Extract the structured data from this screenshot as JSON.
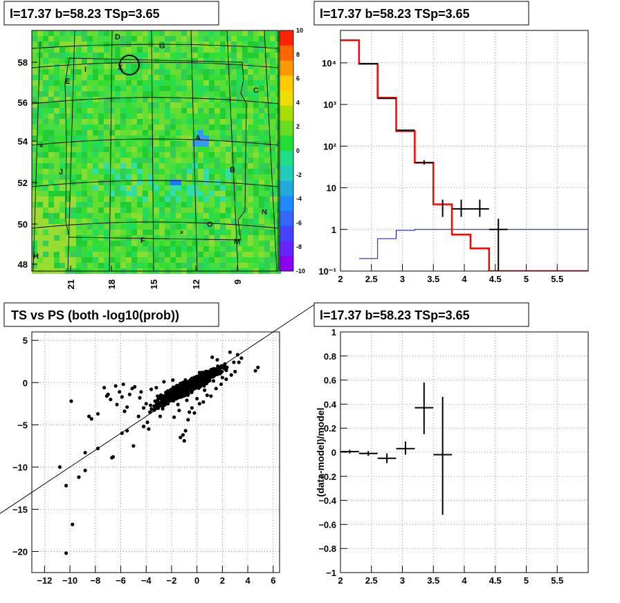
{
  "panels": {
    "map_title": "l=17.37 b=58.23 TSp=3.65",
    "hist_title": "l=17.37 b=58.23 TSp=3.65",
    "scatter_title": "TS vs PS (both -log10(prob))",
    "resid_title": "l=17.37 b=58.23 TSp=3.65"
  },
  "chart_data": [
    {
      "type": "heatmap",
      "title": "l=17.37 b=58.23 TSp=3.65",
      "y_ticks": [
        "48",
        "50",
        "52",
        "54",
        "56",
        "58"
      ],
      "x_ticks": [
        "21",
        "18",
        "15",
        "12",
        "9"
      ],
      "colorbar": {
        "ticks": [
          "10",
          "8",
          "6",
          "4",
          "2",
          "0",
          "-2",
          "-4",
          "-6",
          "-8",
          "-10"
        ],
        "range": [
          -10,
          10
        ]
      },
      "region_labels": [
        "D",
        "G",
        "I",
        "X",
        "E",
        "C",
        "A",
        "J",
        "B",
        "N",
        "O",
        "F",
        "M",
        "H"
      ]
    },
    {
      "type": "line",
      "title": "l=17.37 b=58.23 TSp=3.65",
      "x_ticks": [
        "2",
        "2.5",
        "3",
        "3.5",
        "4",
        "4.5",
        "5",
        "5.5"
      ],
      "y_ticks": [
        "10⁻¹",
        "1",
        "10",
        "10²",
        "10³",
        "10⁴"
      ],
      "yscale": "log",
      "xlim": [
        2,
        6
      ],
      "ylim": [
        0.1,
        60000
      ],
      "series": [
        {
          "color": "#ff0000",
          "edges": [
            2.0,
            2.3,
            2.6,
            2.9,
            3.2,
            3.5,
            3.8,
            4.1,
            4.4,
            6.0
          ],
          "values": [
            35000,
            9500,
            1450,
            230,
            40,
            4.0,
            0.75,
            0.35,
            0.1
          ]
        },
        {
          "color": "#0000ff",
          "edges": [
            2.3,
            2.6,
            2.9,
            3.2,
            3.5,
            6.0
          ],
          "values": [
            0.2,
            0.6,
            0.95,
            1.0,
            1.0
          ]
        }
      ],
      "data_points": [
        {
          "x": 2.45,
          "xerr": 0.15,
          "y": 9500,
          "ylo": 9500,
          "yhi": 9500
        },
        {
          "x": 2.75,
          "xerr": 0.15,
          "y": 1400,
          "ylo": 1400,
          "yhi": 1400
        },
        {
          "x": 3.05,
          "xerr": 0.15,
          "y": 240,
          "ylo": 240,
          "yhi": 240
        },
        {
          "x": 3.35,
          "xerr": 0.15,
          "y": 40,
          "ylo": 36,
          "yhi": 46
        },
        {
          "x": 3.65,
          "xerr": 0.0,
          "y": 3.2,
          "ylo": 2.0,
          "yhi": 5.2
        },
        {
          "x": 3.95,
          "xerr": 0.15,
          "y": 3.1,
          "ylo": 2.0,
          "yhi": 5.2
        },
        {
          "x": 4.25,
          "xerr": 0.15,
          "y": 3.1,
          "ylo": 2.0,
          "yhi": 5.2
        },
        {
          "x": 4.55,
          "xerr": 0.15,
          "y": 1.0,
          "ylo": 0.1,
          "yhi": 1.8
        }
      ]
    },
    {
      "type": "scatter",
      "title": "TS vs PS (both -log10(prob))",
      "x_ticks": [
        "−12",
        "−10",
        "−8",
        "−6",
        "−4",
        "−2",
        "0",
        "2",
        "4",
        "6"
      ],
      "y_ticks": [
        "5",
        "0",
        "−5",
        "−10",
        "−15",
        "−20"
      ],
      "xlim": [
        -13,
        6.5
      ],
      "ylim": [
        -22.5,
        6
      ],
      "reference_line": {
        "slope": 1,
        "intercept": 0
      },
      "points": [
        [
          -10.3,
          -20.2
        ],
        [
          -9.8,
          -16.8
        ],
        [
          -10.8,
          -10.0
        ],
        [
          -10.3,
          -12.2
        ],
        [
          -9.3,
          -11.2
        ],
        [
          -8.8,
          -10.4
        ],
        [
          -7.8,
          -7.8
        ],
        [
          -6.7,
          -8.9
        ],
        [
          -6.6,
          -8.8
        ],
        [
          -5.9,
          -6.0
        ],
        [
          -5.0,
          -7.5
        ],
        [
          -5.5,
          -5.7
        ],
        [
          -9.9,
          -2.2
        ],
        [
          -8.8,
          -8.3
        ],
        [
          -4.6,
          -4.0
        ],
        [
          -3.8,
          -5.5
        ],
        [
          -3.9,
          -4.7
        ],
        [
          -4.2,
          -5.2
        ],
        [
          -8.3,
          -4.3
        ],
        [
          -8.5,
          -4.0
        ],
        [
          -7.8,
          -3.7
        ],
        [
          -7.0,
          -1.4
        ],
        [
          -6.8,
          -2.0
        ],
        [
          -6.4,
          -0.4
        ],
        [
          -5.9,
          -1.7
        ],
        [
          -5.5,
          -2.9
        ],
        [
          -5.1,
          -0.7
        ],
        [
          -4.5,
          -1.8
        ],
        [
          -4.2,
          -3.0
        ],
        [
          -3.7,
          -3.5
        ],
        [
          -3.3,
          -2.2
        ],
        [
          -2.9,
          -4.0
        ],
        [
          -2.5,
          -2.6
        ],
        [
          -2.3,
          -1.0
        ],
        [
          -1.8,
          -4.1
        ],
        [
          -1.5,
          -2.6
        ],
        [
          -1.1,
          -6.2
        ],
        [
          -1.0,
          -6.9
        ],
        [
          -1.3,
          -6.5
        ],
        [
          -0.9,
          -5.7
        ],
        [
          -0.7,
          -4.4
        ],
        [
          -0.6,
          -3.5
        ],
        [
          -0.4,
          -3.0
        ],
        [
          -0.2,
          -3.6
        ],
        [
          0.2,
          -2.5
        ],
        [
          0.5,
          -2.3
        ],
        [
          0.8,
          -1.5
        ],
        [
          1.1,
          -1.6
        ],
        [
          1.5,
          -0.7
        ],
        [
          1.9,
          -0.2
        ],
        [
          2.3,
          0.4
        ],
        [
          2.7,
          0.9
        ],
        [
          3.0,
          1.3
        ],
        [
          3.3,
          2.4
        ],
        [
          3.2,
          3.3
        ],
        [
          3.5,
          2.9
        ],
        [
          2.6,
          3.6
        ],
        [
          1.2,
          3.0
        ],
        [
          1.6,
          2.7
        ],
        [
          4.6,
          1.4
        ],
        [
          4.8,
          1.8
        ],
        [
          -4.4,
          -1.1
        ],
        [
          -3.2,
          -0.6
        ],
        [
          -2.1,
          -0.9
        ],
        [
          -1.6,
          -1.2
        ],
        [
          -0.5,
          -0.4
        ],
        [
          0.3,
          0.7
        ],
        [
          0.9,
          1.3
        ],
        [
          1.8,
          1.8
        ],
        [
          2.2,
          2.2
        ],
        [
          2.9,
          2.4
        ],
        [
          -2.6,
          0.1
        ],
        [
          -1.9,
          0.3
        ],
        [
          -3.6,
          -0.8
        ],
        [
          -4.9,
          -0.5
        ],
        [
          -6.1,
          -1.1
        ],
        [
          -5.3,
          -1.4
        ],
        [
          -3.1,
          -1.6
        ],
        [
          -2.7,
          -3.1
        ],
        [
          -1.4,
          -3.3
        ],
        [
          -0.8,
          -2.1
        ],
        [
          0.0,
          -1.9
        ],
        [
          0.6,
          -0.9
        ],
        [
          1.3,
          0.2
        ],
        [
          2.0,
          0.6
        ],
        [
          -4.0,
          -2.5
        ],
        [
          -5.7,
          -3.4
        ],
        [
          -6.3,
          -2.6
        ],
        [
          -7.3,
          -0.6
        ],
        [
          -7.1,
          -1.6
        ],
        [
          -5.8,
          -0.2
        ]
      ]
    },
    {
      "type": "line",
      "title": "l=17.37 b=58.23 TSp=3.65",
      "ylabel": "(data-model)/model",
      "x_ticks": [
        "2",
        "2.5",
        "3",
        "3.5",
        "4",
        "4.5",
        "5",
        "5.5"
      ],
      "y_ticks": [
        "1",
        "0.8",
        "0.6",
        "0.4",
        "0.2",
        "0",
        "−0.2",
        "−0.4",
        "−0.6",
        "−0.8",
        "−1"
      ],
      "xlim": [
        2,
        6
      ],
      "ylim": [
        -1,
        1
      ],
      "data_points": [
        {
          "x": 2.15,
          "xerr": 0.15,
          "y": 0.005,
          "ylo": -0.01,
          "yhi": 0.02
        },
        {
          "x": 2.45,
          "xerr": 0.15,
          "y": -0.01,
          "ylo": -0.03,
          "yhi": 0.01
        },
        {
          "x": 2.75,
          "xerr": 0.15,
          "y": -0.05,
          "ylo": -0.09,
          "yhi": -0.01
        },
        {
          "x": 3.05,
          "xerr": 0.15,
          "y": 0.03,
          "ylo": -0.02,
          "yhi": 0.09
        },
        {
          "x": 3.35,
          "xerr": 0.15,
          "y": 0.37,
          "ylo": 0.15,
          "yhi": 0.58
        },
        {
          "x": 3.65,
          "xerr": 0.15,
          "y": -0.02,
          "ylo": -0.52,
          "yhi": 0.46
        }
      ]
    }
  ]
}
